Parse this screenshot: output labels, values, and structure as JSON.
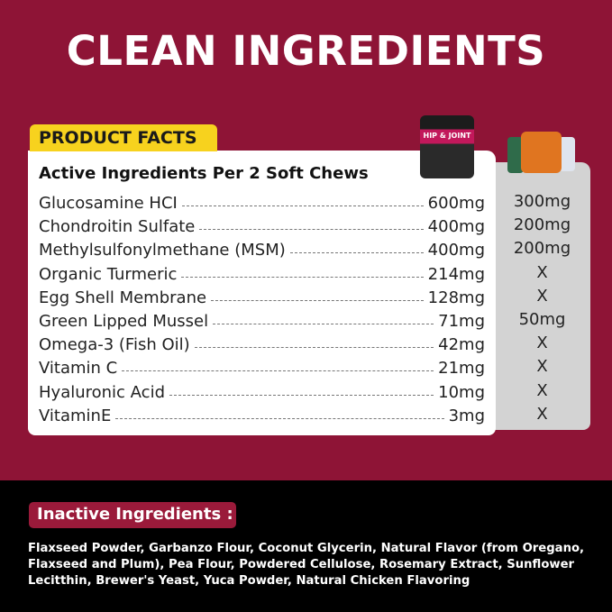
{
  "title": "CLEAN INGREDIENTS",
  "badge": "PRODUCT FACTS",
  "heading": "Active Ingredients Per 2 Soft Chews",
  "product_label": "HIP & JOINT",
  "rows": [
    {
      "name": "Glucosamine HCI",
      "ours": "600mg",
      "competitor": "300mg"
    },
    {
      "name": "Chondroitin Sulfate",
      "ours": "400mg",
      "competitor": "200mg"
    },
    {
      "name": "Methylsulfonylmethane (MSM)",
      "ours": "400mg",
      "competitor": "200mg"
    },
    {
      "name": "Organic Turmeric",
      "ours": "214mg",
      "competitor": "X"
    },
    {
      "name": "Egg Shell Membrane",
      "ours": "128mg",
      "competitor": "X"
    },
    {
      "name": "Green Lipped Mussel",
      "ours": "71mg",
      "competitor": "50mg"
    },
    {
      "name": "Omega-3 (Fish Oil)",
      "ours": "42mg",
      "competitor": "X"
    },
    {
      "name": "Vitamin C",
      "ours": "21mg",
      "competitor": "X"
    },
    {
      "name": "Hyaluronic Acid",
      "ours": "10mg",
      "competitor": "X"
    },
    {
      "name": "VitaminE",
      "ours": "3mg",
      "competitor": "X"
    }
  ],
  "inactive": {
    "label": "Inactive Ingredients :",
    "text": "Flaxseed Powder, Garbanzo Flour, Coconut Glycerin, Natural Flavor (from Oregano, Flaxseed and Plum), Pea Flour, Powdered Cellulose, Rosemary Extract, Sunflower Lecitthin, Brewer's Yeast, Yuca Powder, Natural Chicken Flavoring"
  },
  "colors": {
    "maroon": "#8e1436",
    "badge_yellow": "#f7d21e",
    "inactive_badge": "#9a1a3a"
  }
}
